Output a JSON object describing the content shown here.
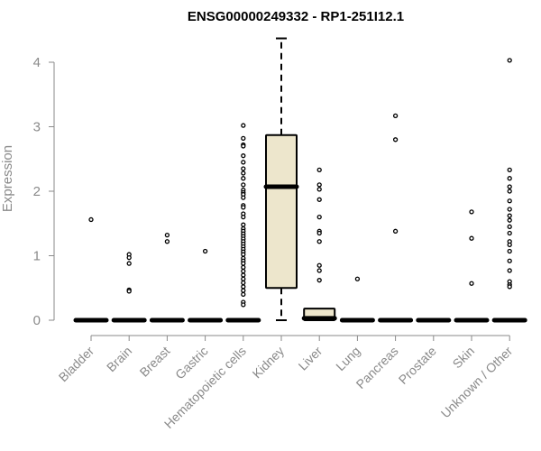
{
  "chart_data": {
    "type": "box",
    "title": "ENSG00000249332 - RP1-251I12.1",
    "xlabel": "",
    "ylabel": "Expression",
    "ylim": [
      0,
      4.4
    ],
    "yticks": [
      "0",
      "1",
      "2",
      "3",
      "4"
    ],
    "box_fill": "#ede6cc",
    "point_style": "open-circle",
    "categories": [
      {
        "name": "Bladder",
        "q1": 0,
        "median": 0,
        "q3": 0,
        "whisker_low": 0,
        "whisker_high": 0,
        "outliers": [
          1.56
        ]
      },
      {
        "name": "Brain",
        "q1": 0,
        "median": 0,
        "q3": 0,
        "whisker_low": 0,
        "whisker_high": 0,
        "outliers": [
          1.02,
          0.97,
          0.88,
          0.47,
          0.45
        ]
      },
      {
        "name": "Breast",
        "q1": 0,
        "median": 0,
        "q3": 0,
        "whisker_low": 0,
        "whisker_high": 0,
        "outliers": [
          1.32,
          1.22
        ]
      },
      {
        "name": "Gastric",
        "q1": 0,
        "median": 0,
        "q3": 0,
        "whisker_low": 0,
        "whisker_high": 0,
        "outliers": [
          1.07
        ]
      },
      {
        "name": "Hematopoietic cells",
        "q1": 0,
        "median": 0,
        "q3": 0,
        "whisker_low": 0,
        "whisker_high": 0,
        "outliers": [
          3.02,
          2.82,
          2.72,
          2.7,
          2.55,
          2.45,
          2.35,
          2.28,
          2.2,
          2.1,
          2.02,
          1.98,
          1.95,
          1.9,
          1.78,
          1.75,
          1.65,
          1.6,
          1.48,
          1.42,
          1.38,
          1.34,
          1.3,
          1.26,
          1.22,
          1.18,
          1.14,
          1.1,
          1.06,
          1.02,
          0.96,
          0.92,
          0.88,
          0.82,
          0.76,
          0.7,
          0.64,
          0.58,
          0.52,
          0.46,
          0.4,
          0.28,
          0.24
        ]
      },
      {
        "name": "Kidney",
        "q1": 0.5,
        "median": 2.07,
        "q3": 2.87,
        "whisker_low": 0,
        "whisker_high": 4.37,
        "outliers": []
      },
      {
        "name": "Liver",
        "q1": 0,
        "median": 0.03,
        "q3": 0.18,
        "whisker_low": 0,
        "whisker_high": 0.18,
        "outliers": [
          2.33,
          2.1,
          2.03,
          1.87,
          1.6,
          1.38,
          1.35,
          1.22,
          0.85,
          0.77,
          0.62
        ]
      },
      {
        "name": "Lung",
        "q1": 0,
        "median": 0,
        "q3": 0,
        "whisker_low": 0,
        "whisker_high": 0,
        "outliers": [
          0.64
        ]
      },
      {
        "name": "Pancreas",
        "q1": 0,
        "median": 0,
        "q3": 0,
        "whisker_low": 0,
        "whisker_high": 0,
        "outliers": [
          3.17,
          2.8,
          1.38
        ]
      },
      {
        "name": "Prostate",
        "q1": 0,
        "median": 0,
        "q3": 0,
        "whisker_low": 0,
        "whisker_high": 0,
        "outliers": []
      },
      {
        "name": "Skin",
        "q1": 0,
        "median": 0,
        "q3": 0,
        "whisker_low": 0,
        "whisker_high": 0,
        "outliers": [
          1.68,
          1.27,
          0.57
        ]
      },
      {
        "name": "Unknown / Other",
        "q1": 0,
        "median": 0,
        "q3": 0,
        "whisker_low": 0,
        "whisker_high": 0,
        "outliers": [
          4.03,
          2.33,
          2.2,
          2.07,
          2.0,
          1.85,
          1.72,
          1.62,
          1.55,
          1.45,
          1.35,
          1.22,
          1.17,
          1.07,
          0.92,
          0.77,
          0.6,
          0.55,
          0.52
        ]
      }
    ]
  }
}
